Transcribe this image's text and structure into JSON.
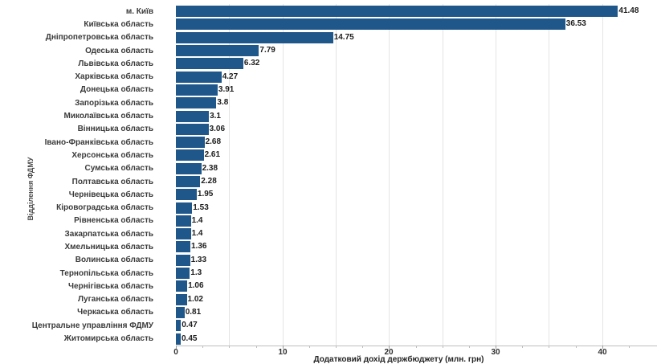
{
  "chart_data": {
    "type": "bar",
    "orientation": "horizontal",
    "title": "",
    "xlabel": "Додатковий дохід держбюджету (млн. грн)",
    "ylabel": "Відділення ФДМУ",
    "xlim": [
      0,
      45
    ],
    "grid": true,
    "grid_step": 5,
    "x_ticks": [
      0,
      10,
      20,
      30,
      40
    ],
    "minor_tick_step": 2.5,
    "legend": "none",
    "bar_color": "#1F578B",
    "categories": [
      "м. Київ",
      "Київська область",
      "Дніпропетровська область",
      "Одеська область",
      "Львівська область",
      "Харківська область",
      "Донецька область",
      "Запорізька область",
      "Миколаївська область",
      "Вінницька область",
      "Івано-Франківська область",
      "Херсонська область",
      "Сумська область",
      "Полтавська область",
      "Чернівецька область",
      "Кіровоградська область",
      "Рівненська область",
      "Закарпатська область",
      "Хмельницька область",
      "Волинська область",
      "Тернопільська область",
      "Чернігівська область",
      "Луганська область",
      "Черкаська область",
      "Центральне управління ФДМУ",
      "Житомирська область"
    ],
    "values": [
      41.48,
      36.53,
      14.75,
      7.79,
      6.32,
      4.27,
      3.91,
      3.8,
      3.1,
      3.06,
      2.68,
      2.61,
      2.38,
      2.28,
      1.95,
      1.53,
      1.4,
      1.4,
      1.36,
      1.33,
      1.3,
      1.06,
      1.02,
      0.81,
      0.47,
      0.45
    ],
    "value_labels": [
      "41.48",
      "36.53",
      "14.75",
      "7.79",
      "6.32",
      "4.27",
      "3.91",
      "3.8",
      "3.1",
      "3.06",
      "2.68",
      "2.61",
      "2.38",
      "2.28",
      "1.95",
      "1.53",
      "1.4",
      "1.4",
      "1.36",
      "1.33",
      "1.3",
      "1.06",
      "1.02",
      "0.81",
      "0.47",
      "0.45"
    ]
  }
}
